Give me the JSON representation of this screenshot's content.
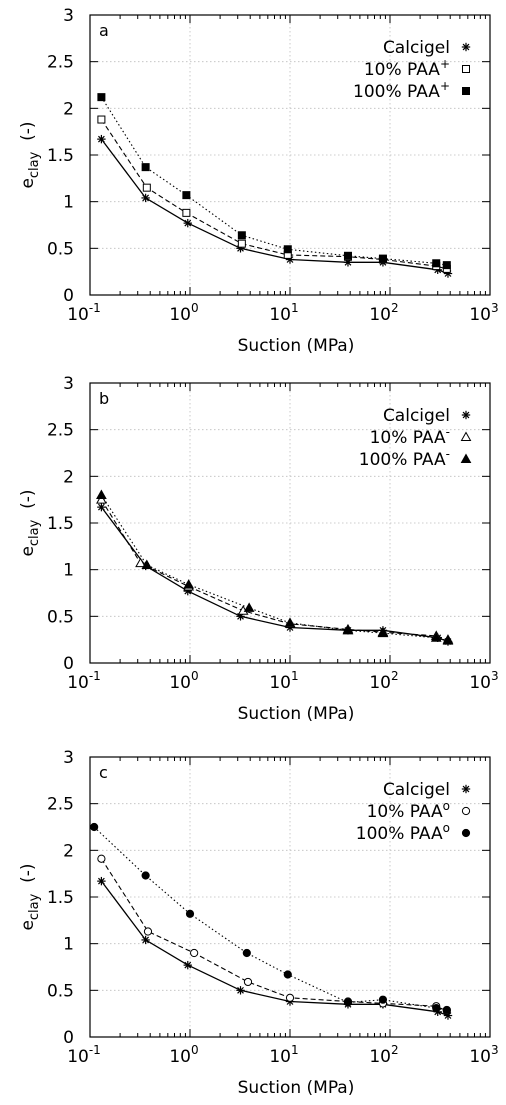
{
  "chart_data": [
    {
      "type": "line",
      "panel_label": "a",
      "xlabel": "Suction (MPa)",
      "ylabel_main": "e",
      "ylabel_sub": "clay",
      "ylabel_unit": "(-)",
      "x_scale": "log",
      "xlim": [
        0.1,
        1000
      ],
      "ylim": [
        0,
        3
      ],
      "grid": true,
      "legend_position": "top-right",
      "x_ticks": [
        {
          "base": "10",
          "exp": "-1",
          "value": 0.1
        },
        {
          "base": "10",
          "exp": "0",
          "value": 1
        },
        {
          "base": "10",
          "exp": "1",
          "value": 10
        },
        {
          "base": "10",
          "exp": "2",
          "value": 100
        },
        {
          "base": "10",
          "exp": "3",
          "value": 1000
        }
      ],
      "y_ticks": [
        {
          "label": "0",
          "value": 0
        },
        {
          "label": "0.5",
          "value": 0.5
        },
        {
          "label": "1",
          "value": 1
        },
        {
          "label": "1.5",
          "value": 1.5
        },
        {
          "label": "2",
          "value": 2
        },
        {
          "label": "2.5",
          "value": 2.5
        },
        {
          "label": "3",
          "value": 3
        }
      ],
      "series": [
        {
          "name": "Calcigel",
          "marker": "asterisk",
          "line": "solid",
          "x": [
            0.13,
            0.36,
            0.95,
            3.2,
            10,
            38,
            85,
            300,
            380
          ],
          "y": [
            1.67,
            1.04,
            0.77,
            0.5,
            0.38,
            0.35,
            0.35,
            0.27,
            0.23
          ]
        },
        {
          "name": "10% PAA",
          "name_sup": "+",
          "marker": "open-square",
          "line": "dashed",
          "x": [
            0.13,
            0.37,
            0.92,
            3.3,
            9.5,
            38,
            85,
            290,
            370
          ],
          "y": [
            1.88,
            1.15,
            0.88,
            0.55,
            0.43,
            0.41,
            0.38,
            0.31,
            0.28
          ]
        },
        {
          "name": "100% PAA",
          "name_sup": "+",
          "marker": "filled-square",
          "line": "dotted",
          "x": [
            0.13,
            0.36,
            0.92,
            3.3,
            9.5,
            38,
            85,
            290,
            370
          ],
          "y": [
            2.12,
            1.37,
            1.07,
            0.64,
            0.49,
            0.42,
            0.39,
            0.34,
            0.32
          ]
        }
      ]
    },
    {
      "type": "line",
      "panel_label": "b",
      "xlabel": "Suction (MPa)",
      "ylabel_main": "e",
      "ylabel_sub": "clay",
      "ylabel_unit": "(-)",
      "x_scale": "log",
      "xlim": [
        0.1,
        1000
      ],
      "ylim": [
        0,
        3
      ],
      "grid": true,
      "legend_position": "top-right",
      "x_ticks": [
        {
          "base": "10",
          "exp": "-1",
          "value": 0.1
        },
        {
          "base": "10",
          "exp": "0",
          "value": 1
        },
        {
          "base": "10",
          "exp": "1",
          "value": 10
        },
        {
          "base": "10",
          "exp": "2",
          "value": 100
        },
        {
          "base": "10",
          "exp": "3",
          "value": 1000
        }
      ],
      "y_ticks": [
        {
          "label": "0",
          "value": 0
        },
        {
          "label": "0.5",
          "value": 0.5
        },
        {
          "label": "1",
          "value": 1
        },
        {
          "label": "1.5",
          "value": 1.5
        },
        {
          "label": "2",
          "value": 2
        },
        {
          "label": "2.5",
          "value": 2.5
        },
        {
          "label": "3",
          "value": 3
        }
      ],
      "series": [
        {
          "name": "Calcigel",
          "marker": "asterisk",
          "line": "solid",
          "x": [
            0.13,
            0.36,
            0.95,
            3.2,
            10,
            38,
            85,
            300,
            380
          ],
          "y": [
            1.67,
            1.04,
            0.77,
            0.5,
            0.38,
            0.35,
            0.35,
            0.27,
            0.23
          ]
        },
        {
          "name": "10% PAA",
          "name_sup": "-",
          "marker": "open-triangle",
          "line": "dashed",
          "x": [
            0.13,
            0.32,
            0.97,
            3.4,
            10,
            38,
            85,
            290,
            380
          ],
          "y": [
            1.75,
            1.07,
            0.82,
            0.56,
            0.42,
            0.36,
            0.33,
            0.29,
            0.25
          ]
        },
        {
          "name": "100% PAA",
          "name_sup": "-",
          "marker": "filled-triangle",
          "line": "dotted",
          "x": [
            0.13,
            0.37,
            0.97,
            3.9,
            10,
            38,
            85,
            290,
            380
          ],
          "y": [
            1.8,
            1.05,
            0.84,
            0.59,
            0.43,
            0.35,
            0.32,
            0.27,
            0.24
          ]
        }
      ]
    },
    {
      "type": "line",
      "panel_label": "c",
      "xlabel": "Suction (MPa)",
      "ylabel_main": "e",
      "ylabel_sub": "clay",
      "ylabel_unit": "(-)",
      "x_scale": "log",
      "xlim": [
        0.1,
        1000
      ],
      "ylim": [
        0,
        3
      ],
      "grid": true,
      "legend_position": "top-right",
      "x_ticks": [
        {
          "base": "10",
          "exp": "-1",
          "value": 0.1
        },
        {
          "base": "10",
          "exp": "0",
          "value": 1
        },
        {
          "base": "10",
          "exp": "1",
          "value": 10
        },
        {
          "base": "10",
          "exp": "2",
          "value": 100
        },
        {
          "base": "10",
          "exp": "3",
          "value": 1000
        }
      ],
      "y_ticks": [
        {
          "label": "0",
          "value": 0
        },
        {
          "label": "0.5",
          "value": 0.5
        },
        {
          "label": "1",
          "value": 1
        },
        {
          "label": "1.5",
          "value": 1.5
        },
        {
          "label": "2",
          "value": 2
        },
        {
          "label": "2.5",
          "value": 2.5
        },
        {
          "label": "3",
          "value": 3
        }
      ],
      "series": [
        {
          "name": "Calcigel",
          "marker": "asterisk",
          "line": "solid",
          "x": [
            0.13,
            0.36,
            0.95,
            3.2,
            10,
            38,
            85,
            300,
            380
          ],
          "y": [
            1.67,
            1.04,
            0.77,
            0.5,
            0.38,
            0.35,
            0.35,
            0.27,
            0.23
          ]
        },
        {
          "name": "10% PAA",
          "name_sup": "o",
          "marker": "open-circle",
          "line": "dashed",
          "x": [
            0.13,
            0.38,
            1.1,
            3.8,
            10,
            38,
            85,
            290,
            370
          ],
          "y": [
            1.91,
            1.13,
            0.9,
            0.59,
            0.42,
            0.38,
            0.36,
            0.33,
            0.28
          ]
        },
        {
          "name": "100% PAA",
          "name_sup": "o",
          "marker": "filled-circle",
          "line": "dotted",
          "x": [
            0.11,
            0.36,
            1.0,
            3.7,
            9.5,
            38,
            85,
            290,
            370
          ],
          "y": [
            2.25,
            1.73,
            1.32,
            0.9,
            0.67,
            0.37,
            0.4,
            0.31,
            0.29
          ]
        }
      ]
    }
  ]
}
